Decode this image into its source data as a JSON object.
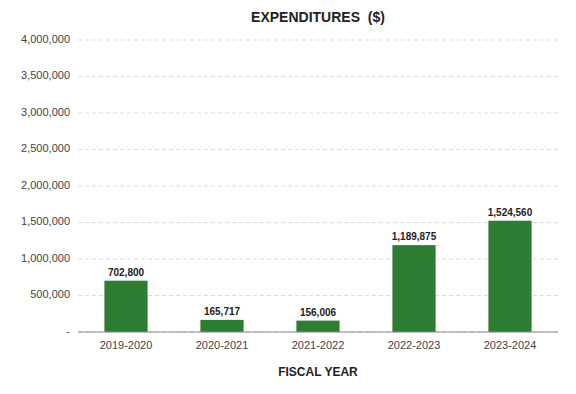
{
  "chart_data": {
    "type": "bar",
    "title": "EXPENDITURES  ($)",
    "xlabel": "FISCAL YEAR",
    "categories": [
      "2019-2020",
      "2020-2021",
      "2021-2022",
      "2022-2023",
      "2023-2024"
    ],
    "values": [
      702800,
      165717,
      156006,
      1189875,
      1524560
    ],
    "value_labels": [
      "702,800",
      "165,717",
      "156,006",
      "1,189,875",
      "1,524,560"
    ],
    "data_labels": true,
    "color": "#2e7d32",
    "ylim": [
      0,
      4000000
    ],
    "yticks": [
      {
        "value": 0,
        "label": "-"
      },
      {
        "value": 500000,
        "label": "500,000"
      },
      {
        "value": 1000000,
        "label": "1,000,000"
      },
      {
        "value": 1500000,
        "label": "1,500,000"
      },
      {
        "value": 2000000,
        "label": "2,000,000"
      },
      {
        "value": 2500000,
        "label": "2,500,000"
      },
      {
        "value": 3000000,
        "label": "3,000,000"
      },
      {
        "value": 3500000,
        "label": "3,500,000"
      },
      {
        "value": 4000000,
        "label": "4,000,000"
      }
    ],
    "grid": true
  }
}
